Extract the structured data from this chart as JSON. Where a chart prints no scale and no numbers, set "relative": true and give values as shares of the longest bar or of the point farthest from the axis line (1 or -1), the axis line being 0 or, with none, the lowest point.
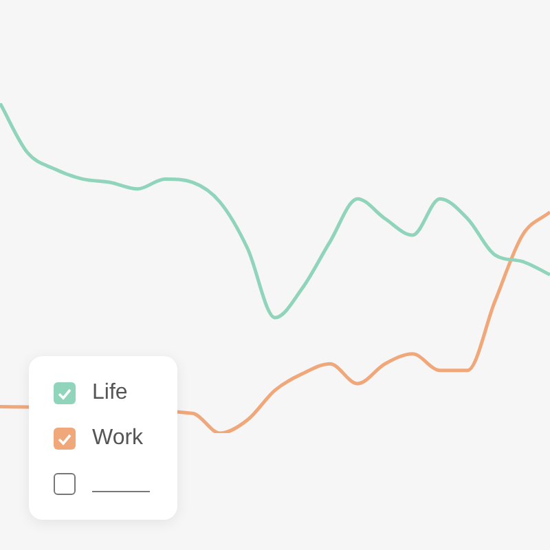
{
  "chart_data": {
    "type": "line",
    "relative": true,
    "legend": "bottom left",
    "categories": [
      null,
      null,
      null,
      null,
      null,
      null,
      null,
      null,
      null,
      null,
      null,
      null,
      null,
      null,
      null,
      null,
      null,
      null,
      null,
      null,
      null
    ],
    "series": [
      {
        "name": "Life",
        "color": "#8fd4bb",
        "values": [
          1.0,
          0.85,
          0.8,
          0.77,
          0.76,
          0.74,
          0.77,
          0.76,
          0.7,
          0.56,
          0.35,
          0.44,
          0.58,
          0.71,
          0.65,
          0.6,
          0.71,
          0.65,
          0.54,
          0.52,
          0.48
        ]
      },
      {
        "name": "Work",
        "color": "#f0a77a",
        "values": [
          0.08,
          null,
          null,
          null,
          null,
          null,
          null,
          0.06,
          0,
          0.04,
          0.13,
          0.18,
          0.21,
          0.15,
          0.21,
          0.24,
          0.19,
          0.19,
          0.4,
          0.6,
          0.67
        ]
      }
    ]
  }
}
